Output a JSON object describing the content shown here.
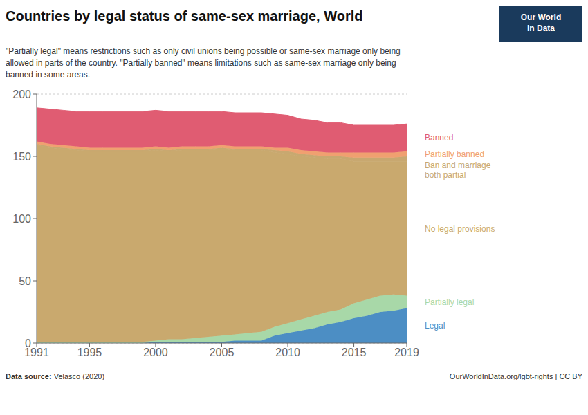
{
  "chart_data": {
    "type": "area",
    "stacked": true,
    "grid": true,
    "title": "Countries by legal status of same-sex marriage, World",
    "subtitle": "\"Partially legal\" means restrictions such as only civil unions being possible or same-sex marriage only being\nallowed in parts of the country. \"Partially banned\" means limitations such as same-sex marriage only being\nbanned in some areas.",
    "annotations": [
      "Data source:",
      " Velasco (2020)",
      "OurWorldInData.org/lgbt-rights | CC BY",
      "Our World\nin Data"
    ],
    "x": [
      1991,
      1992,
      1993,
      1994,
      1995,
      1996,
      1997,
      1998,
      1999,
      2000,
      2001,
      2002,
      2003,
      2004,
      2005,
      2006,
      2007,
      2008,
      2009,
      2010,
      2011,
      2012,
      2013,
      2014,
      2015,
      2016,
      2017,
      2018,
      2019
    ],
    "series": [
      {
        "name": "Legal",
        "color": "#4c8ec4",
        "values": [
          0,
          0,
          0,
          0,
          0,
          0,
          0,
          0,
          0,
          1,
          1,
          1,
          1,
          1,
          1,
          2,
          2,
          2,
          6,
          8,
          10,
          12,
          15,
          17,
          20,
          22,
          25,
          26,
          28
        ]
      },
      {
        "name": "Partially legal",
        "color": "#a8d8a8",
        "values": [
          1,
          1,
          1,
          1,
          1,
          1,
          1,
          1,
          1,
          1,
          2,
          2,
          3,
          4,
          5,
          5,
          6,
          7,
          7,
          8,
          9,
          10,
          10,
          10,
          12,
          13,
          13,
          13,
          10
        ]
      },
      {
        "name": "No legal provisions",
        "color": "#c9a96e",
        "values": [
          158,
          156,
          155,
          154,
          153,
          153,
          153,
          153,
          153,
          153,
          151,
          152,
          151,
          150,
          150,
          148,
          147,
          146,
          140,
          136,
          131,
          127,
          123,
          121,
          114,
          111,
          108,
          107,
          108
        ]
      },
      {
        "name": "Ban and marriage\nboth partial",
        "color": "#c8a870",
        "values": [
          1,
          1,
          1,
          1,
          1,
          1,
          1,
          1,
          1,
          1,
          1,
          1,
          1,
          1,
          1,
          1,
          1,
          1,
          2,
          2,
          2,
          2,
          2,
          2,
          3,
          3,
          3,
          3,
          4
        ]
      },
      {
        "name": "Partially banned",
        "color": "#f0a070",
        "values": [
          2,
          2,
          2,
          2,
          2,
          2,
          2,
          2,
          2,
          2,
          2,
          2,
          2,
          2,
          2,
          2,
          2,
          2,
          2,
          3,
          3,
          3,
          3,
          3,
          4,
          4,
          4,
          4,
          4
        ]
      },
      {
        "name": "Banned",
        "color": "#e05c72",
        "values": [
          27,
          28,
          28,
          28,
          29,
          29,
          29,
          29,
          29,
          29,
          29,
          28,
          28,
          28,
          27,
          27,
          27,
          27,
          27,
          26,
          25,
          25,
          24,
          24,
          22,
          22,
          22,
          22,
          22
        ]
      }
    ],
    "xlim": [
      1991,
      2019
    ],
    "xticks": [
      1991,
      1995,
      2000,
      2005,
      2010,
      2015,
      2019
    ],
    "ylim": [
      0,
      200
    ],
    "yticks": [
      0,
      50,
      100,
      150,
      200
    ]
  }
}
